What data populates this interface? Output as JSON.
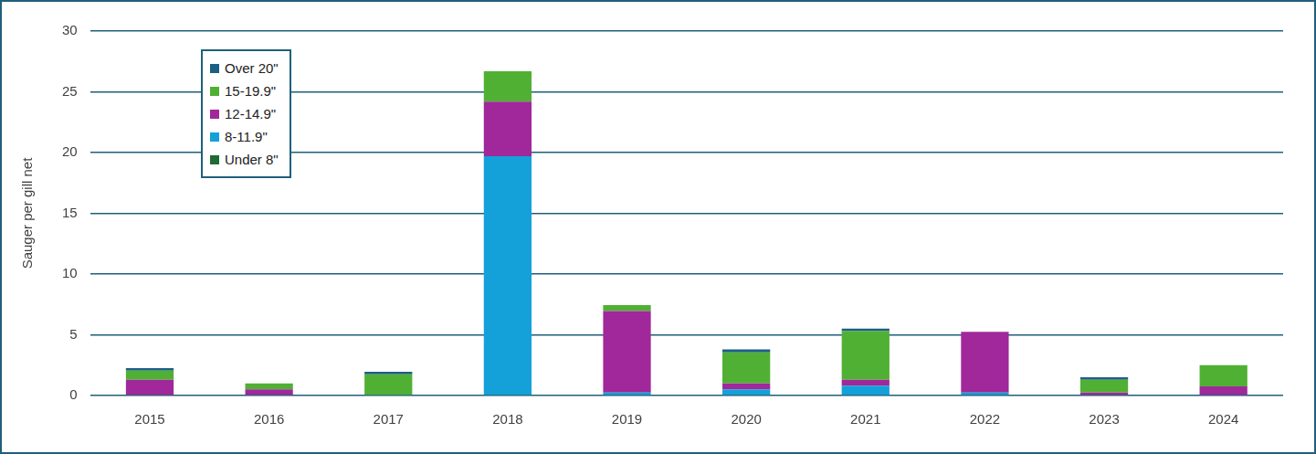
{
  "chart_data": {
    "type": "bar",
    "y_label": "Sauger per gill net",
    "categories": [
      2015,
      2016,
      2017,
      2018,
      2019,
      2020,
      2021,
      2022,
      2023,
      2024
    ],
    "series": [
      {
        "name": "Under 8\"",
        "color": "#1e6b33",
        "values": [
          0,
          0,
          0,
          0,
          0,
          0,
          0,
          0,
          0,
          0
        ]
      },
      {
        "name": "8-11.9\"",
        "color": "#14a0d8",
        "values": [
          0,
          0,
          0,
          19.7,
          0.25,
          0.5,
          0.8,
          0.25,
          0,
          0
        ]
      },
      {
        "name": "12-14.9\"",
        "color": "#a0289a",
        "values": [
          1.3,
          0.5,
          0,
          4.5,
          6.7,
          0.5,
          0.5,
          5.0,
          0.25,
          0.75
        ]
      },
      {
        "name": "15-19.9\"",
        "color": "#50b034",
        "values": [
          0.75,
          0.5,
          1.75,
          2.5,
          0.5,
          2.55,
          4.0,
          0,
          1.05,
          1.75
        ]
      },
      {
        "name": "Over 20\"",
        "color": "#1b5f86",
        "values": [
          0.2,
          0,
          0.2,
          0,
          0,
          0.25,
          0.2,
          0,
          0.2,
          0
        ]
      }
    ],
    "ylim": [
      0,
      30
    ],
    "yticks": [
      0,
      5,
      10,
      15,
      20,
      25,
      30
    ],
    "stacked": true,
    "grid": true,
    "legend": "upper left"
  }
}
